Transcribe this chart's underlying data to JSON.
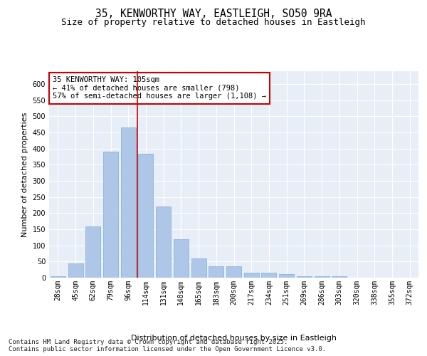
{
  "title_line1": "35, KENWORTHY WAY, EASTLEIGH, SO50 9RA",
  "title_line2": "Size of property relative to detached houses in Eastleigh",
  "xlabel": "Distribution of detached houses by size in Eastleigh",
  "ylabel": "Number of detached properties",
  "categories": [
    "28sqm",
    "45sqm",
    "62sqm",
    "79sqm",
    "96sqm",
    "114sqm",
    "131sqm",
    "148sqm",
    "165sqm",
    "183sqm",
    "200sqm",
    "217sqm",
    "234sqm",
    "251sqm",
    "269sqm",
    "286sqm",
    "303sqm",
    "320sqm",
    "338sqm",
    "355sqm",
    "372sqm"
  ],
  "values": [
    5,
    45,
    160,
    390,
    465,
    385,
    220,
    120,
    60,
    35,
    35,
    15,
    15,
    10,
    5,
    5,
    5,
    0,
    0,
    0,
    0
  ],
  "bar_color": "#aec6e8",
  "bar_edgecolor": "#7bafd4",
  "background_color": "#e8eef7",
  "grid_color": "#ffffff",
  "ylim": [
    0,
    640
  ],
  "yticks": [
    0,
    50,
    100,
    150,
    200,
    250,
    300,
    350,
    400,
    450,
    500,
    550,
    600
  ],
  "vline_x": 4.5,
  "vline_color": "#cc0000",
  "annotation_text": "35 KENWORTHY WAY: 105sqm\n← 41% of detached houses are smaller (798)\n57% of semi-detached houses are larger (1,108) →",
  "annotation_box_edgecolor": "#cc0000",
  "footer_text": "Contains HM Land Registry data © Crown copyright and database right 2025.\nContains public sector information licensed under the Open Government Licence v3.0.",
  "title_fontsize": 10.5,
  "subtitle_fontsize": 9,
  "axis_label_fontsize": 8,
  "tick_fontsize": 7,
  "annotation_fontsize": 7.5,
  "footer_fontsize": 6.5
}
